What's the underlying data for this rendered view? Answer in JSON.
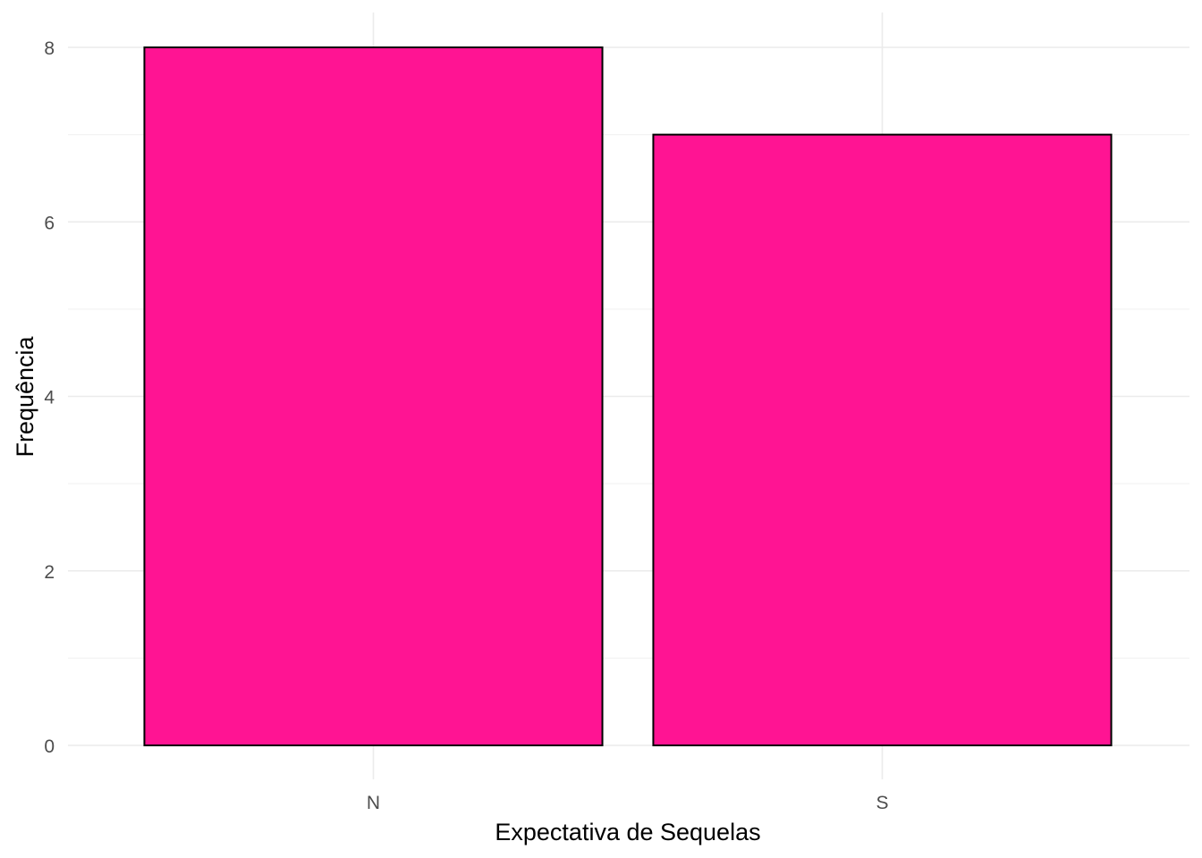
{
  "chart_data": {
    "type": "bar",
    "categories": [
      "N",
      "S"
    ],
    "values": [
      8,
      7
    ],
    "title": "",
    "xlabel": "Expectativa de Sequelas",
    "ylabel": "Frequência",
    "ylim": [
      0,
      8
    ],
    "yticks": [
      0,
      2,
      4,
      6,
      8
    ],
    "grid": true,
    "bar_color": "#FF1493",
    "bar_border_color": "#000000",
    "background_color": "#FFFFFF"
  }
}
